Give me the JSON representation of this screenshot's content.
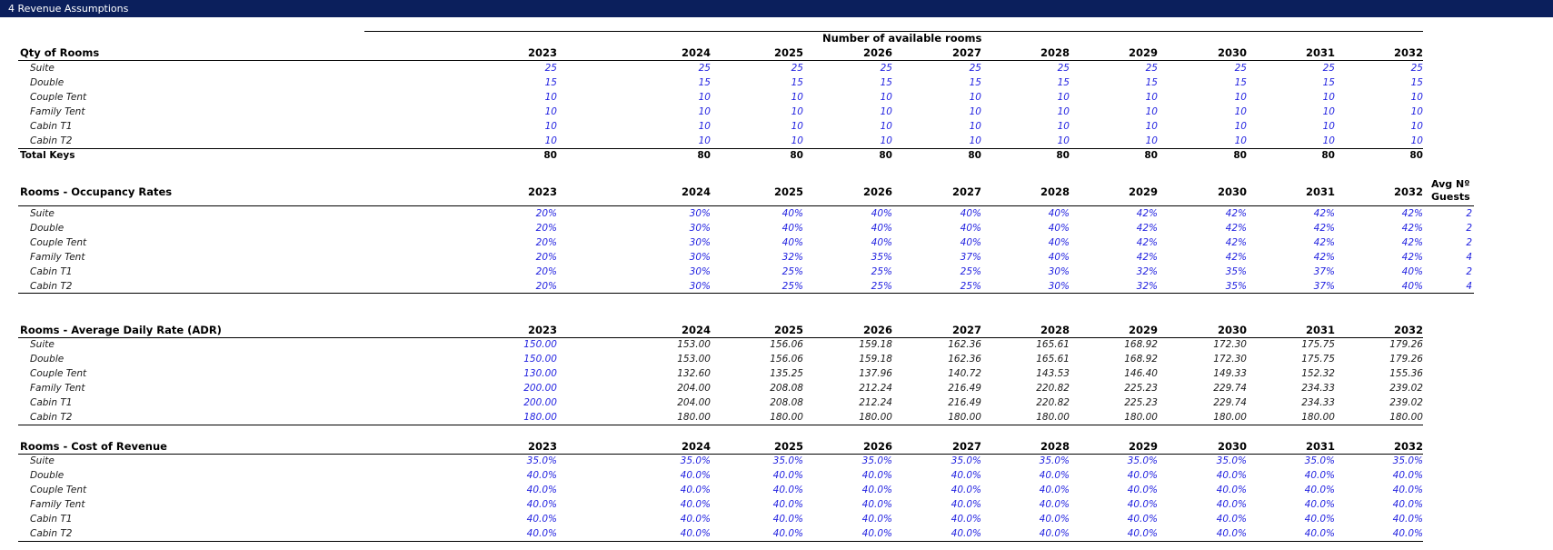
{
  "sheet": {
    "title": "4  Revenue Assumptions"
  },
  "years": [
    "2023",
    "2024",
    "2025",
    "2026",
    "2027",
    "2028",
    "2029",
    "2030",
    "2031",
    "2032"
  ],
  "qty": {
    "super_header": "Number of available rooms",
    "header": "Qty of Rooms",
    "rows": [
      {
        "label": "Suite",
        "values": [
          "25",
          "25",
          "25",
          "25",
          "25",
          "25",
          "25",
          "25",
          "25",
          "25"
        ]
      },
      {
        "label": "Double",
        "values": [
          "15",
          "15",
          "15",
          "15",
          "15",
          "15",
          "15",
          "15",
          "15",
          "15"
        ]
      },
      {
        "label": "Couple Tent",
        "values": [
          "10",
          "10",
          "10",
          "10",
          "10",
          "10",
          "10",
          "10",
          "10",
          "10"
        ]
      },
      {
        "label": "Family Tent",
        "values": [
          "10",
          "10",
          "10",
          "10",
          "10",
          "10",
          "10",
          "10",
          "10",
          "10"
        ]
      },
      {
        "label": "Cabin T1",
        "values": [
          "10",
          "10",
          "10",
          "10",
          "10",
          "10",
          "10",
          "10",
          "10",
          "10"
        ]
      },
      {
        "label": "Cabin T2",
        "values": [
          "10",
          "10",
          "10",
          "10",
          "10",
          "10",
          "10",
          "10",
          "10",
          "10"
        ]
      }
    ],
    "total": {
      "label": "Total  Keys",
      "values": [
        "80",
        "80",
        "80",
        "80",
        "80",
        "80",
        "80",
        "80",
        "80",
        "80"
      ]
    }
  },
  "occupancy": {
    "header": "Rooms - Occupancy Rates",
    "guests_header_line1": "Avg Nº",
    "guests_header_line2": "Guests",
    "rows": [
      {
        "label": "Suite",
        "values": [
          "20%",
          "30%",
          "40%",
          "40%",
          "40%",
          "40%",
          "42%",
          "42%",
          "42%",
          "42%"
        ],
        "guests": "2"
      },
      {
        "label": "Double",
        "values": [
          "20%",
          "30%",
          "40%",
          "40%",
          "40%",
          "40%",
          "42%",
          "42%",
          "42%",
          "42%"
        ],
        "guests": "2"
      },
      {
        "label": "Couple Tent",
        "values": [
          "20%",
          "30%",
          "40%",
          "40%",
          "40%",
          "40%",
          "42%",
          "42%",
          "42%",
          "42%"
        ],
        "guests": "2"
      },
      {
        "label": "Family Tent",
        "values": [
          "20%",
          "30%",
          "32%",
          "35%",
          "37%",
          "40%",
          "42%",
          "42%",
          "42%",
          "42%"
        ],
        "guests": "4"
      },
      {
        "label": "Cabin T1",
        "values": [
          "20%",
          "30%",
          "25%",
          "25%",
          "25%",
          "30%",
          "32%",
          "35%",
          "37%",
          "40%"
        ],
        "guests": "2"
      },
      {
        "label": "Cabin T2",
        "values": [
          "20%",
          "30%",
          "25%",
          "25%",
          "25%",
          "30%",
          "32%",
          "35%",
          "37%",
          "40%"
        ],
        "guests": "4"
      }
    ]
  },
  "adr": {
    "header": "Rooms - Average Daily Rate (ADR)",
    "rows": [
      {
        "label": "Suite",
        "values": [
          "150.00",
          "153.00",
          "156.06",
          "159.18",
          "162.36",
          "165.61",
          "168.92",
          "172.30",
          "175.75",
          "179.26"
        ]
      },
      {
        "label": "Double",
        "values": [
          "150.00",
          "153.00",
          "156.06",
          "159.18",
          "162.36",
          "165.61",
          "168.92",
          "172.30",
          "175.75",
          "179.26"
        ]
      },
      {
        "label": "Couple Tent",
        "values": [
          "130.00",
          "132.60",
          "135.25",
          "137.96",
          "140.72",
          "143.53",
          "146.40",
          "149.33",
          "152.32",
          "155.36"
        ]
      },
      {
        "label": "Family Tent",
        "values": [
          "200.00",
          "204.00",
          "208.08",
          "212.24",
          "216.49",
          "220.82",
          "225.23",
          "229.74",
          "234.33",
          "239.02"
        ]
      },
      {
        "label": "Cabin T1",
        "values": [
          "200.00",
          "204.00",
          "208.08",
          "212.24",
          "216.49",
          "220.82",
          "225.23",
          "229.74",
          "234.33",
          "239.02"
        ]
      },
      {
        "label": "Cabin T2",
        "values": [
          "180.00",
          "180.00",
          "180.00",
          "180.00",
          "180.00",
          "180.00",
          "180.00",
          "180.00",
          "180.00",
          "180.00"
        ]
      }
    ]
  },
  "cost": {
    "header": "Rooms - Cost of Revenue",
    "rows": [
      {
        "label": "Suite",
        "values": [
          "35.0%",
          "35.0%",
          "35.0%",
          "35.0%",
          "35.0%",
          "35.0%",
          "35.0%",
          "35.0%",
          "35.0%",
          "35.0%"
        ]
      },
      {
        "label": "Double",
        "values": [
          "40.0%",
          "40.0%",
          "40.0%",
          "40.0%",
          "40.0%",
          "40.0%",
          "40.0%",
          "40.0%",
          "40.0%",
          "40.0%"
        ]
      },
      {
        "label": "Couple Tent",
        "values": [
          "40.0%",
          "40.0%",
          "40.0%",
          "40.0%",
          "40.0%",
          "40.0%",
          "40.0%",
          "40.0%",
          "40.0%",
          "40.0%"
        ]
      },
      {
        "label": "Family Tent",
        "values": [
          "40.0%",
          "40.0%",
          "40.0%",
          "40.0%",
          "40.0%",
          "40.0%",
          "40.0%",
          "40.0%",
          "40.0%",
          "40.0%"
        ]
      },
      {
        "label": "Cabin T1",
        "values": [
          "40.0%",
          "40.0%",
          "40.0%",
          "40.0%",
          "40.0%",
          "40.0%",
          "40.0%",
          "40.0%",
          "40.0%",
          "40.0%"
        ]
      },
      {
        "label": "Cabin T2",
        "values": [
          "40.0%",
          "40.0%",
          "40.0%",
          "40.0%",
          "40.0%",
          "40.0%",
          "40.0%",
          "40.0%",
          "40.0%",
          "40.0%"
        ]
      }
    ]
  }
}
